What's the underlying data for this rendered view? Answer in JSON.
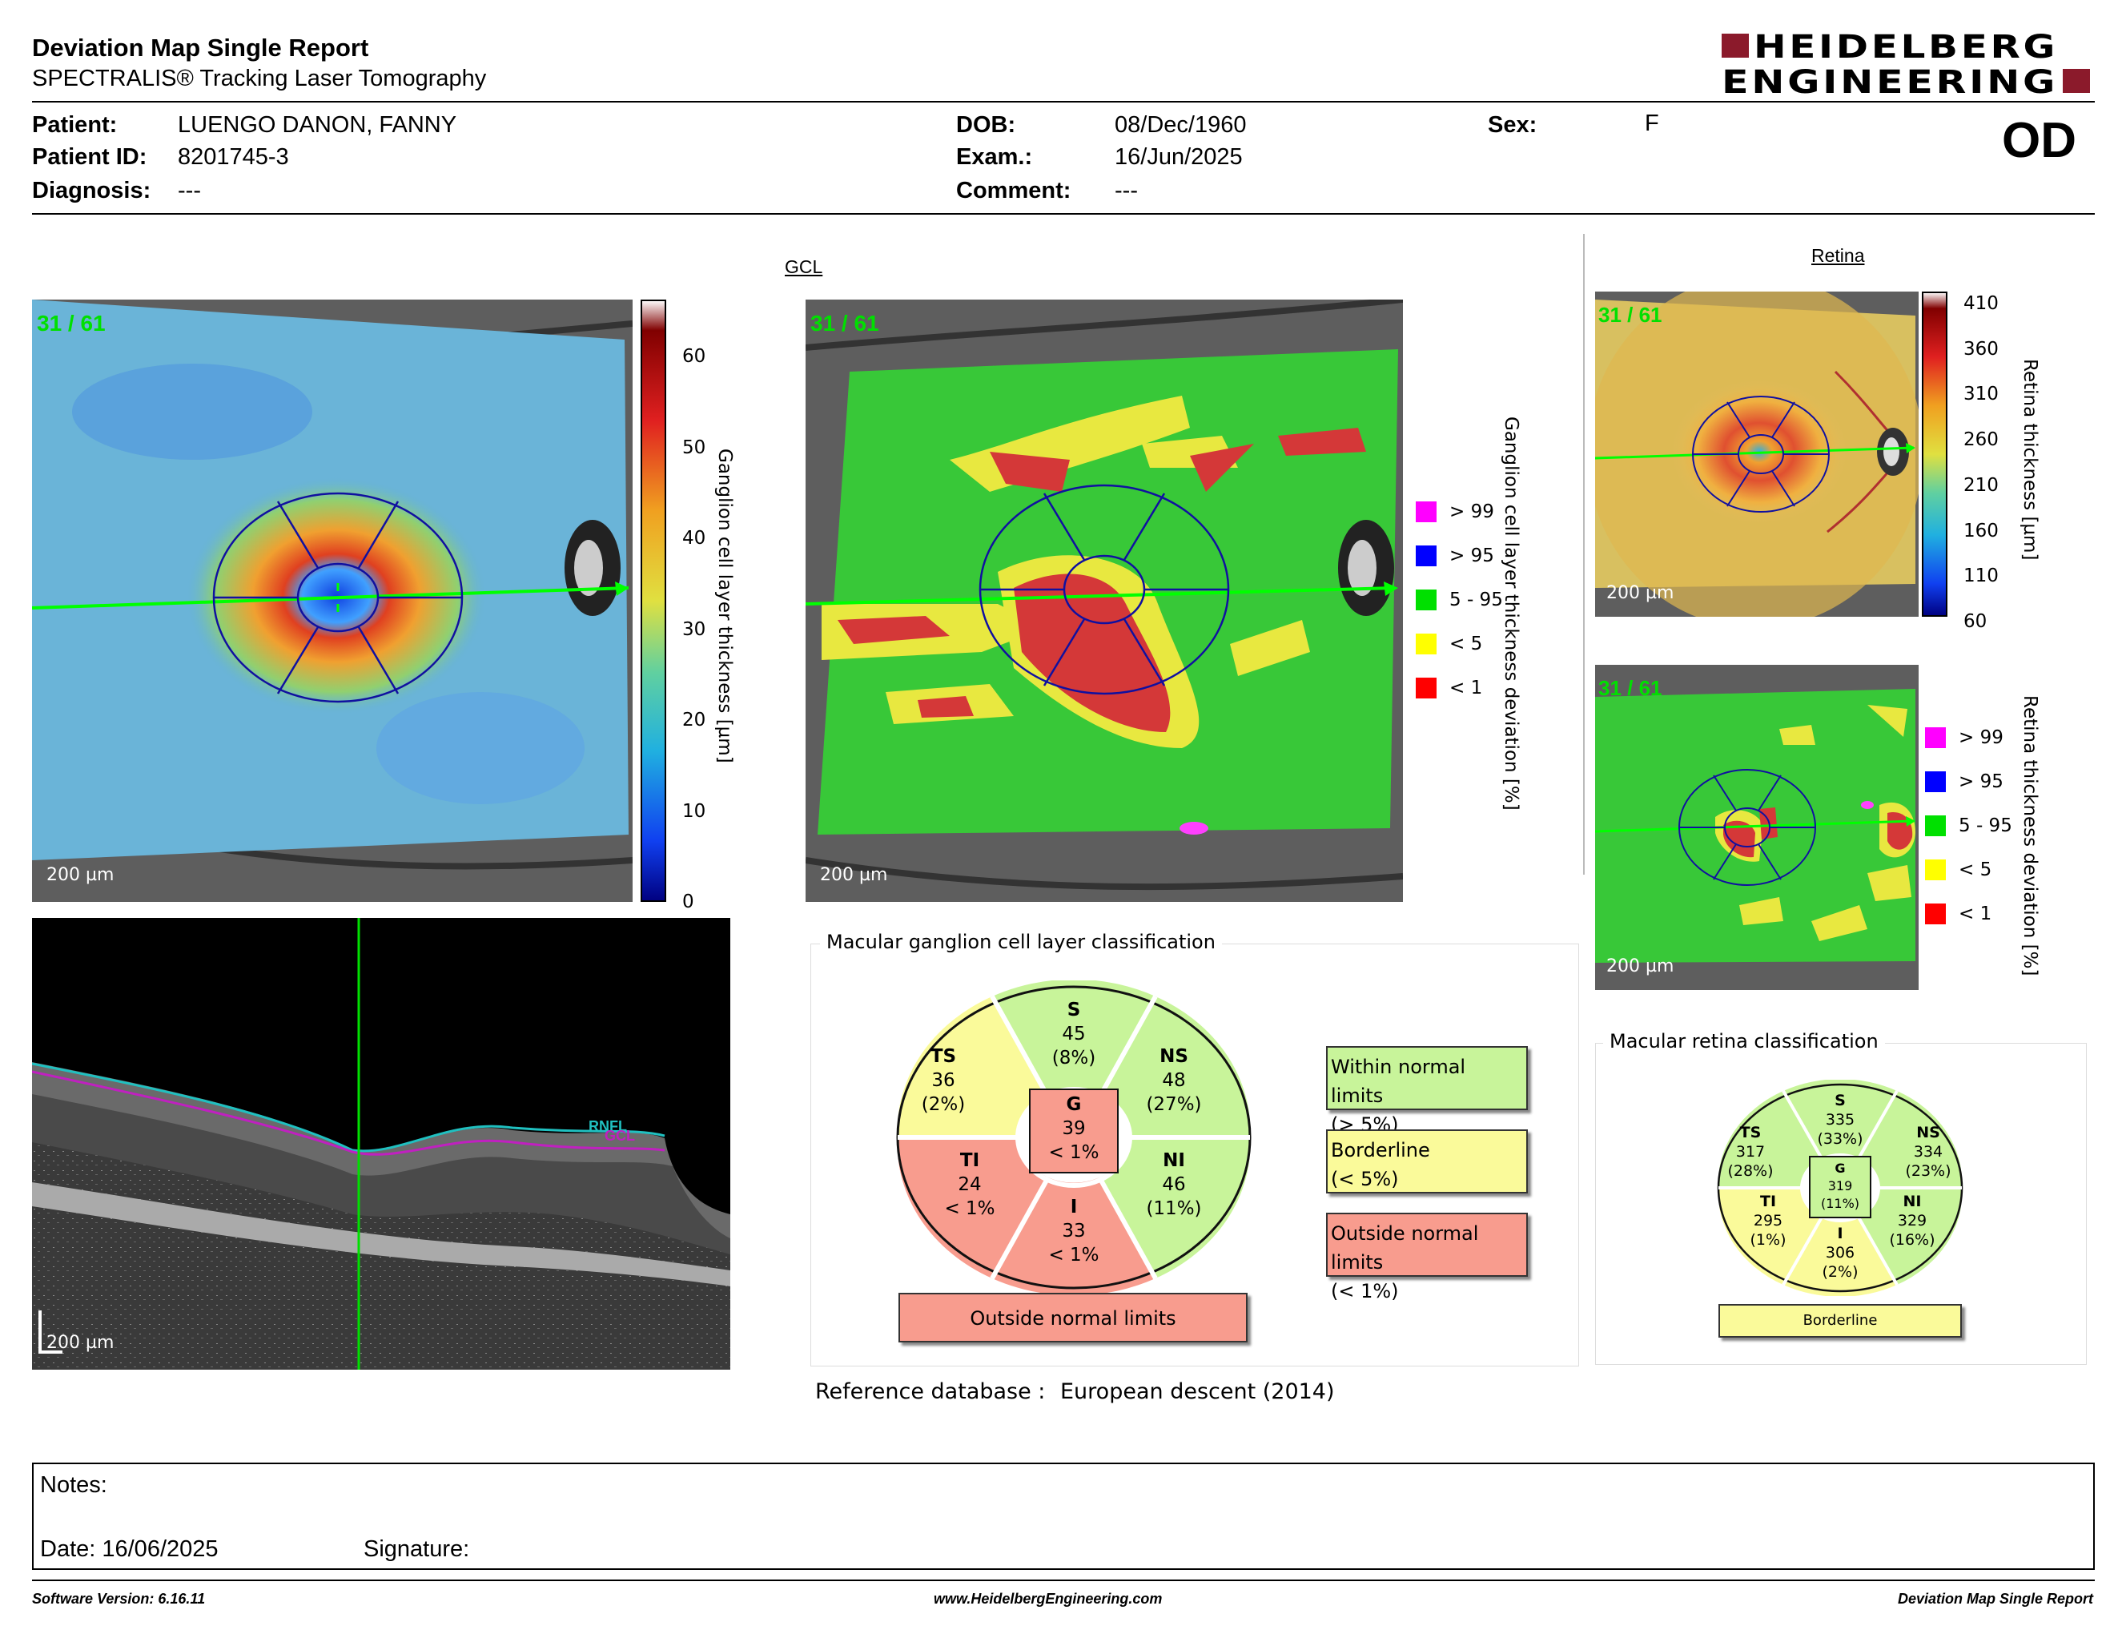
{
  "header": {
    "title": "Deviation Map Single Report",
    "subtitle": "SPECTRALIS® Tracking Laser Tomography",
    "logo_line1": "HEIDELBERG",
    "logo_line2": "ENGINEERING",
    "eye": "OD"
  },
  "patient": {
    "patient_label": "Patient:",
    "patient_value": "LUENGO DANON, FANNY",
    "id_label": "Patient ID:",
    "id_value": "8201745-3",
    "diagnosis_label": "Diagnosis:",
    "diagnosis_value": "---",
    "dob_label": "DOB:",
    "dob_value": "08/Dec/1960",
    "exam_label": "Exam.:",
    "exam_value": "16/Jun/2025",
    "comment_label": "Comment:",
    "comment_value": "---",
    "sex_label": "Sex:",
    "sex_value": "F"
  },
  "gcl": {
    "section_label": "GCL",
    "scan_counter": "31 / 61",
    "scale": "200 µm",
    "colorbar_ticks": [
      "60",
      "50",
      "40",
      "30",
      "20",
      "10",
      "0"
    ],
    "colorbar_label": "Ganglion cell layer thickness [µm]",
    "deviation_label": "Ganglion cell layer thickness deviation [%]",
    "legend": [
      {
        "label": "> 99",
        "color": "#ff00ff"
      },
      {
        "label": "> 95",
        "color": "#0000ff"
      },
      {
        "label": "5 - 95",
        "color": "#00e000"
      },
      {
        "label": "< 5",
        "color": "#ffff00"
      },
      {
        "label": "< 1",
        "color": "#ff0000"
      }
    ]
  },
  "retina": {
    "section_label": "Retina",
    "scan_counter": "31 / 61",
    "scale": "200 µm",
    "colorbar_ticks": [
      "410",
      "360",
      "310",
      "260",
      "210",
      "160",
      "110",
      "60"
    ],
    "colorbar_label": "Retina thickness [µm]",
    "deviation_label": "Retina thickness deviation [%]",
    "legend": [
      {
        "label": "> 99",
        "color": "#ff00ff"
      },
      {
        "label": "> 95",
        "color": "#0000ff"
      },
      {
        "label": "5 - 95",
        "color": "#00e000"
      },
      {
        "label": "< 5",
        "color": "#ffff00"
      },
      {
        "label": "< 1",
        "color": "#ff0000"
      }
    ]
  },
  "bscan": {
    "scale": "200 µm",
    "rnfl_label": "RNFL",
    "gcl_label": "GCL"
  },
  "gcl_classification": {
    "title": "Macular ganglion cell layer classification",
    "sectors": {
      "S": {
        "name": "S",
        "value": "45",
        "pct": "(8%)",
        "color": "#c8f49a"
      },
      "TS": {
        "name": "TS",
        "value": "36",
        "pct": "(2%)",
        "color": "#fafa9a"
      },
      "NS": {
        "name": "NS",
        "value": "48",
        "pct": "(27%)",
        "color": "#c8f49a"
      },
      "TI": {
        "name": "TI",
        "value": "24",
        "pct": "< 1%",
        "color": "#f89c8e"
      },
      "NI": {
        "name": "NI",
        "value": "46",
        "pct": "(11%)",
        "color": "#c8f49a"
      },
      "I": {
        "name": "I",
        "value": "33",
        "pct": "< 1%",
        "color": "#f89c8e"
      },
      "G": {
        "name": "G",
        "value": "39",
        "pct": "< 1%",
        "color": "#f89c8e"
      }
    },
    "overall": "Outside normal limits",
    "overall_color": "#f89c8e",
    "legend_within": "Within normal limits",
    "legend_within_sub": "(> 5%)",
    "legend_border": "Borderline",
    "legend_border_sub": "(< 5%)",
    "legend_outside": "Outside normal limits",
    "legend_outside_sub": "(< 1%)",
    "color_within": "#c8f49a",
    "color_border": "#fafa9a",
    "color_outside": "#f89c8e"
  },
  "retina_classification": {
    "title": "Macular retina classification",
    "sectors": {
      "S": {
        "name": "S",
        "value": "335",
        "pct": "(33%)",
        "color": "#c8f49a"
      },
      "TS": {
        "name": "TS",
        "value": "317",
        "pct": "(28%)",
        "color": "#c8f49a"
      },
      "NS": {
        "name": "NS",
        "value": "334",
        "pct": "(23%)",
        "color": "#c8f49a"
      },
      "TI": {
        "name": "TI",
        "value": "295",
        "pct": "(1%)",
        "color": "#fafa9a"
      },
      "NI": {
        "name": "NI",
        "value": "329",
        "pct": "(16%)",
        "color": "#c8f49a"
      },
      "I": {
        "name": "I",
        "value": "306",
        "pct": "(2%)",
        "color": "#fafa9a"
      },
      "G": {
        "name": "G",
        "value": "319",
        "pct": "(11%)",
        "color": "#c8f49a"
      }
    },
    "overall": "Borderline",
    "overall_color": "#fafa9a"
  },
  "reference": {
    "label": "Reference database :",
    "value": "European descent (2014)"
  },
  "notes": {
    "notes_label": "Notes:",
    "date_label": "Date: 16/06/2025",
    "signature_label": "Signature:"
  },
  "footer": {
    "software": "Software Version: 6.16.11",
    "website": "www.HeidelbergEngineering.com",
    "report": "Deviation Map Single Report"
  }
}
